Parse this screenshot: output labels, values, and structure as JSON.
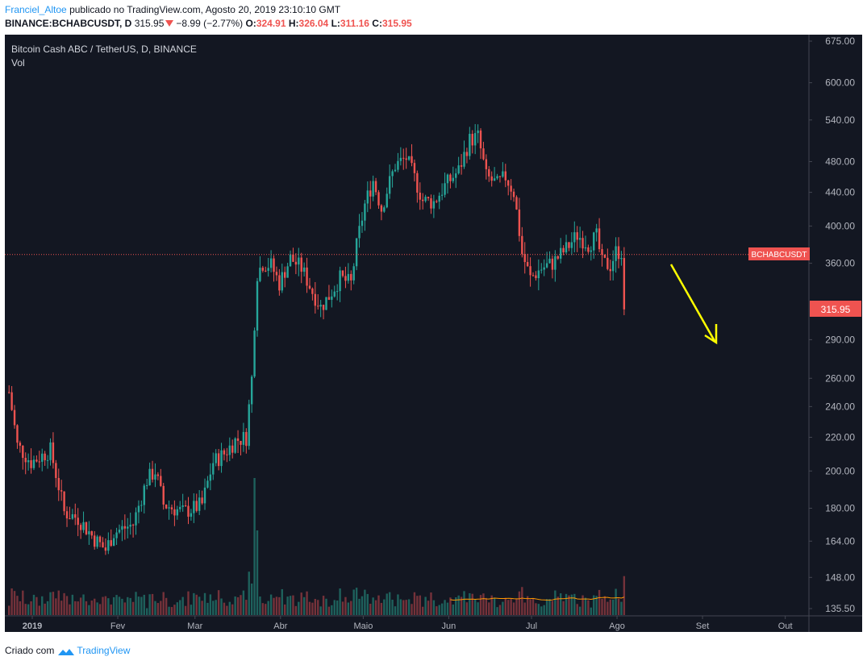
{
  "header": {
    "user": "Franciel_Altoe",
    "published_text": "publicado no TradingView.com, Agosto 20, 2019 23:10:10 GMT",
    "symbol": "BINANCE:BCHABCUSDT, D",
    "price": "315.95",
    "change": "−8.99 (−2.77%)",
    "ohlc": {
      "o_label": "O:",
      "o": "324.91",
      "h_label": "H:",
      "h": "326.04",
      "l_label": "L:",
      "l": "311.16",
      "c_label": "C:",
      "c": "315.95"
    }
  },
  "chart": {
    "title": "Bitcoin Cash ABC / TetherUS, D, BINANCE",
    "volume_label": "Vol",
    "price_tag": "315.95",
    "symbol_tag": "BCHABCUSDT",
    "colors": {
      "background": "#131722",
      "up": "#26a69a",
      "down": "#ef5350",
      "vol_up": "#1e615c",
      "vol_down": "#75323a",
      "arrow": "#ffff00",
      "vol_ma": "#ff9800",
      "axis_text": "#b2b5be",
      "grid": "#2a2e39"
    }
  },
  "footer": {
    "created_with": "Criado com",
    "brand": "TradingView"
  },
  "chart_data": {
    "type": "candlestick",
    "title": "Bitcoin Cash ABC / TetherUS, D, BINANCE",
    "y_axis_ticks": [
      "675.00",
      "600.00",
      "540.00",
      "480.00",
      "440.00",
      "400.00",
      "360.00",
      "290.00",
      "260.00",
      "240.00",
      "220.00",
      "200.00",
      "180.00",
      "164.00",
      "148.00",
      "135.50"
    ],
    "y_scale": "log",
    "x_axis_ticks": [
      "2019",
      "Fev",
      "Mar",
      "Abr",
      "Maio",
      "Jun",
      "Jul",
      "Ago",
      "Set",
      "Out"
    ],
    "last_price": 315.95,
    "horizontal_line": {
      "label": "BCHABCUSDT",
      "value": 369
    },
    "annotation": "yellow arrow pointing down",
    "anchors": [
      {
        "day": 0,
        "price": 250
      },
      {
        "day": 3,
        "price": 215
      },
      {
        "day": 8,
        "price": 205
      },
      {
        "day": 15,
        "price": 212
      },
      {
        "day": 20,
        "price": 178
      },
      {
        "day": 25,
        "price": 175
      },
      {
        "day": 31,
        "price": 165
      },
      {
        "day": 35,
        "price": 160
      },
      {
        "day": 38,
        "price": 168
      },
      {
        "day": 45,
        "price": 172
      },
      {
        "day": 50,
        "price": 195
      },
      {
        "day": 53,
        "price": 200
      },
      {
        "day": 56,
        "price": 182
      },
      {
        "day": 63,
        "price": 178
      },
      {
        "day": 67,
        "price": 180
      },
      {
        "day": 70,
        "price": 182
      },
      {
        "day": 74,
        "price": 205
      },
      {
        "day": 78,
        "price": 210
      },
      {
        "day": 82,
        "price": 218
      },
      {
        "day": 86,
        "price": 220
      },
      {
        "day": 88,
        "price": 260
      },
      {
        "day": 90,
        "price": 350
      },
      {
        "day": 92,
        "price": 360
      },
      {
        "day": 95,
        "price": 358
      },
      {
        "day": 98,
        "price": 340
      },
      {
        "day": 102,
        "price": 365
      },
      {
        "day": 106,
        "price": 355
      },
      {
        "day": 110,
        "price": 332
      },
      {
        "day": 113,
        "price": 318
      },
      {
        "day": 116,
        "price": 328
      },
      {
        "day": 120,
        "price": 345
      },
      {
        "day": 124,
        "price": 340
      },
      {
        "day": 126,
        "price": 378
      },
      {
        "day": 129,
        "price": 425
      },
      {
        "day": 132,
        "price": 455
      },
      {
        "day": 135,
        "price": 420
      },
      {
        "day": 140,
        "price": 475
      },
      {
        "day": 144,
        "price": 485
      },
      {
        "day": 147,
        "price": 458
      },
      {
        "day": 150,
        "price": 430
      },
      {
        "day": 154,
        "price": 428
      },
      {
        "day": 158,
        "price": 448
      },
      {
        "day": 163,
        "price": 468
      },
      {
        "day": 167,
        "price": 510
      },
      {
        "day": 170,
        "price": 515
      },
      {
        "day": 173,
        "price": 460
      },
      {
        "day": 177,
        "price": 450
      },
      {
        "day": 180,
        "price": 460
      },
      {
        "day": 183,
        "price": 440
      },
      {
        "day": 186,
        "price": 370
      },
      {
        "day": 189,
        "price": 345
      },
      {
        "day": 193,
        "price": 355
      },
      {
        "day": 197,
        "price": 360
      },
      {
        "day": 202,
        "price": 375
      },
      {
        "day": 206,
        "price": 390
      },
      {
        "day": 210,
        "price": 380
      },
      {
        "day": 213,
        "price": 388
      },
      {
        "day": 215,
        "price": 360
      },
      {
        "day": 218,
        "price": 358
      },
      {
        "day": 220,
        "price": 372
      },
      {
        "day": 221,
        "price": 372
      }
    ]
  }
}
